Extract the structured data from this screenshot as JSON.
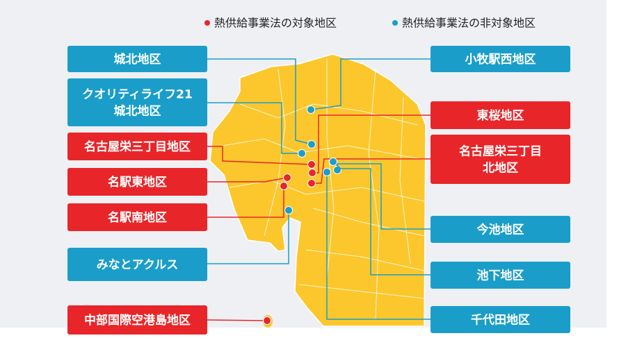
{
  "legend": [
    {
      "label": "熱供給事業法の対象地区",
      "color": "#e8262a",
      "districts": [
        {
          "lines": [
            "名古屋栄三丁目地区"
          ]
        },
        {
          "lines": [
            "名駅東地区"
          ]
        },
        {
          "lines": [
            "名駅南地区"
          ]
        },
        {
          "lines": [
            "中部国際空港島地区"
          ]
        },
        {
          "lines": [
            "東桜地区"
          ]
        },
        {
          "lines": [
            "名古屋栄三丁目",
            "北地区"
          ]
        }
      ]
    },
    {
      "label": "熱供給事業法の非対象地区",
      "color": "#1a9ec9",
      "districts": [
        {
          "lines": [
            "城北地区"
          ]
        },
        {
          "lines": [
            "クオリティライフ21",
            "城北地区"
          ]
        },
        {
          "lines": [
            "みなとアクルス"
          ]
        },
        {
          "lines": [
            "小牧駅西地区"
          ]
        },
        {
          "lines": [
            "今池地区"
          ]
        },
        {
          "lines": [
            "池下地区"
          ]
        },
        {
          "lines": [
            "千代田地区"
          ]
        }
      ]
    }
  ]
}
